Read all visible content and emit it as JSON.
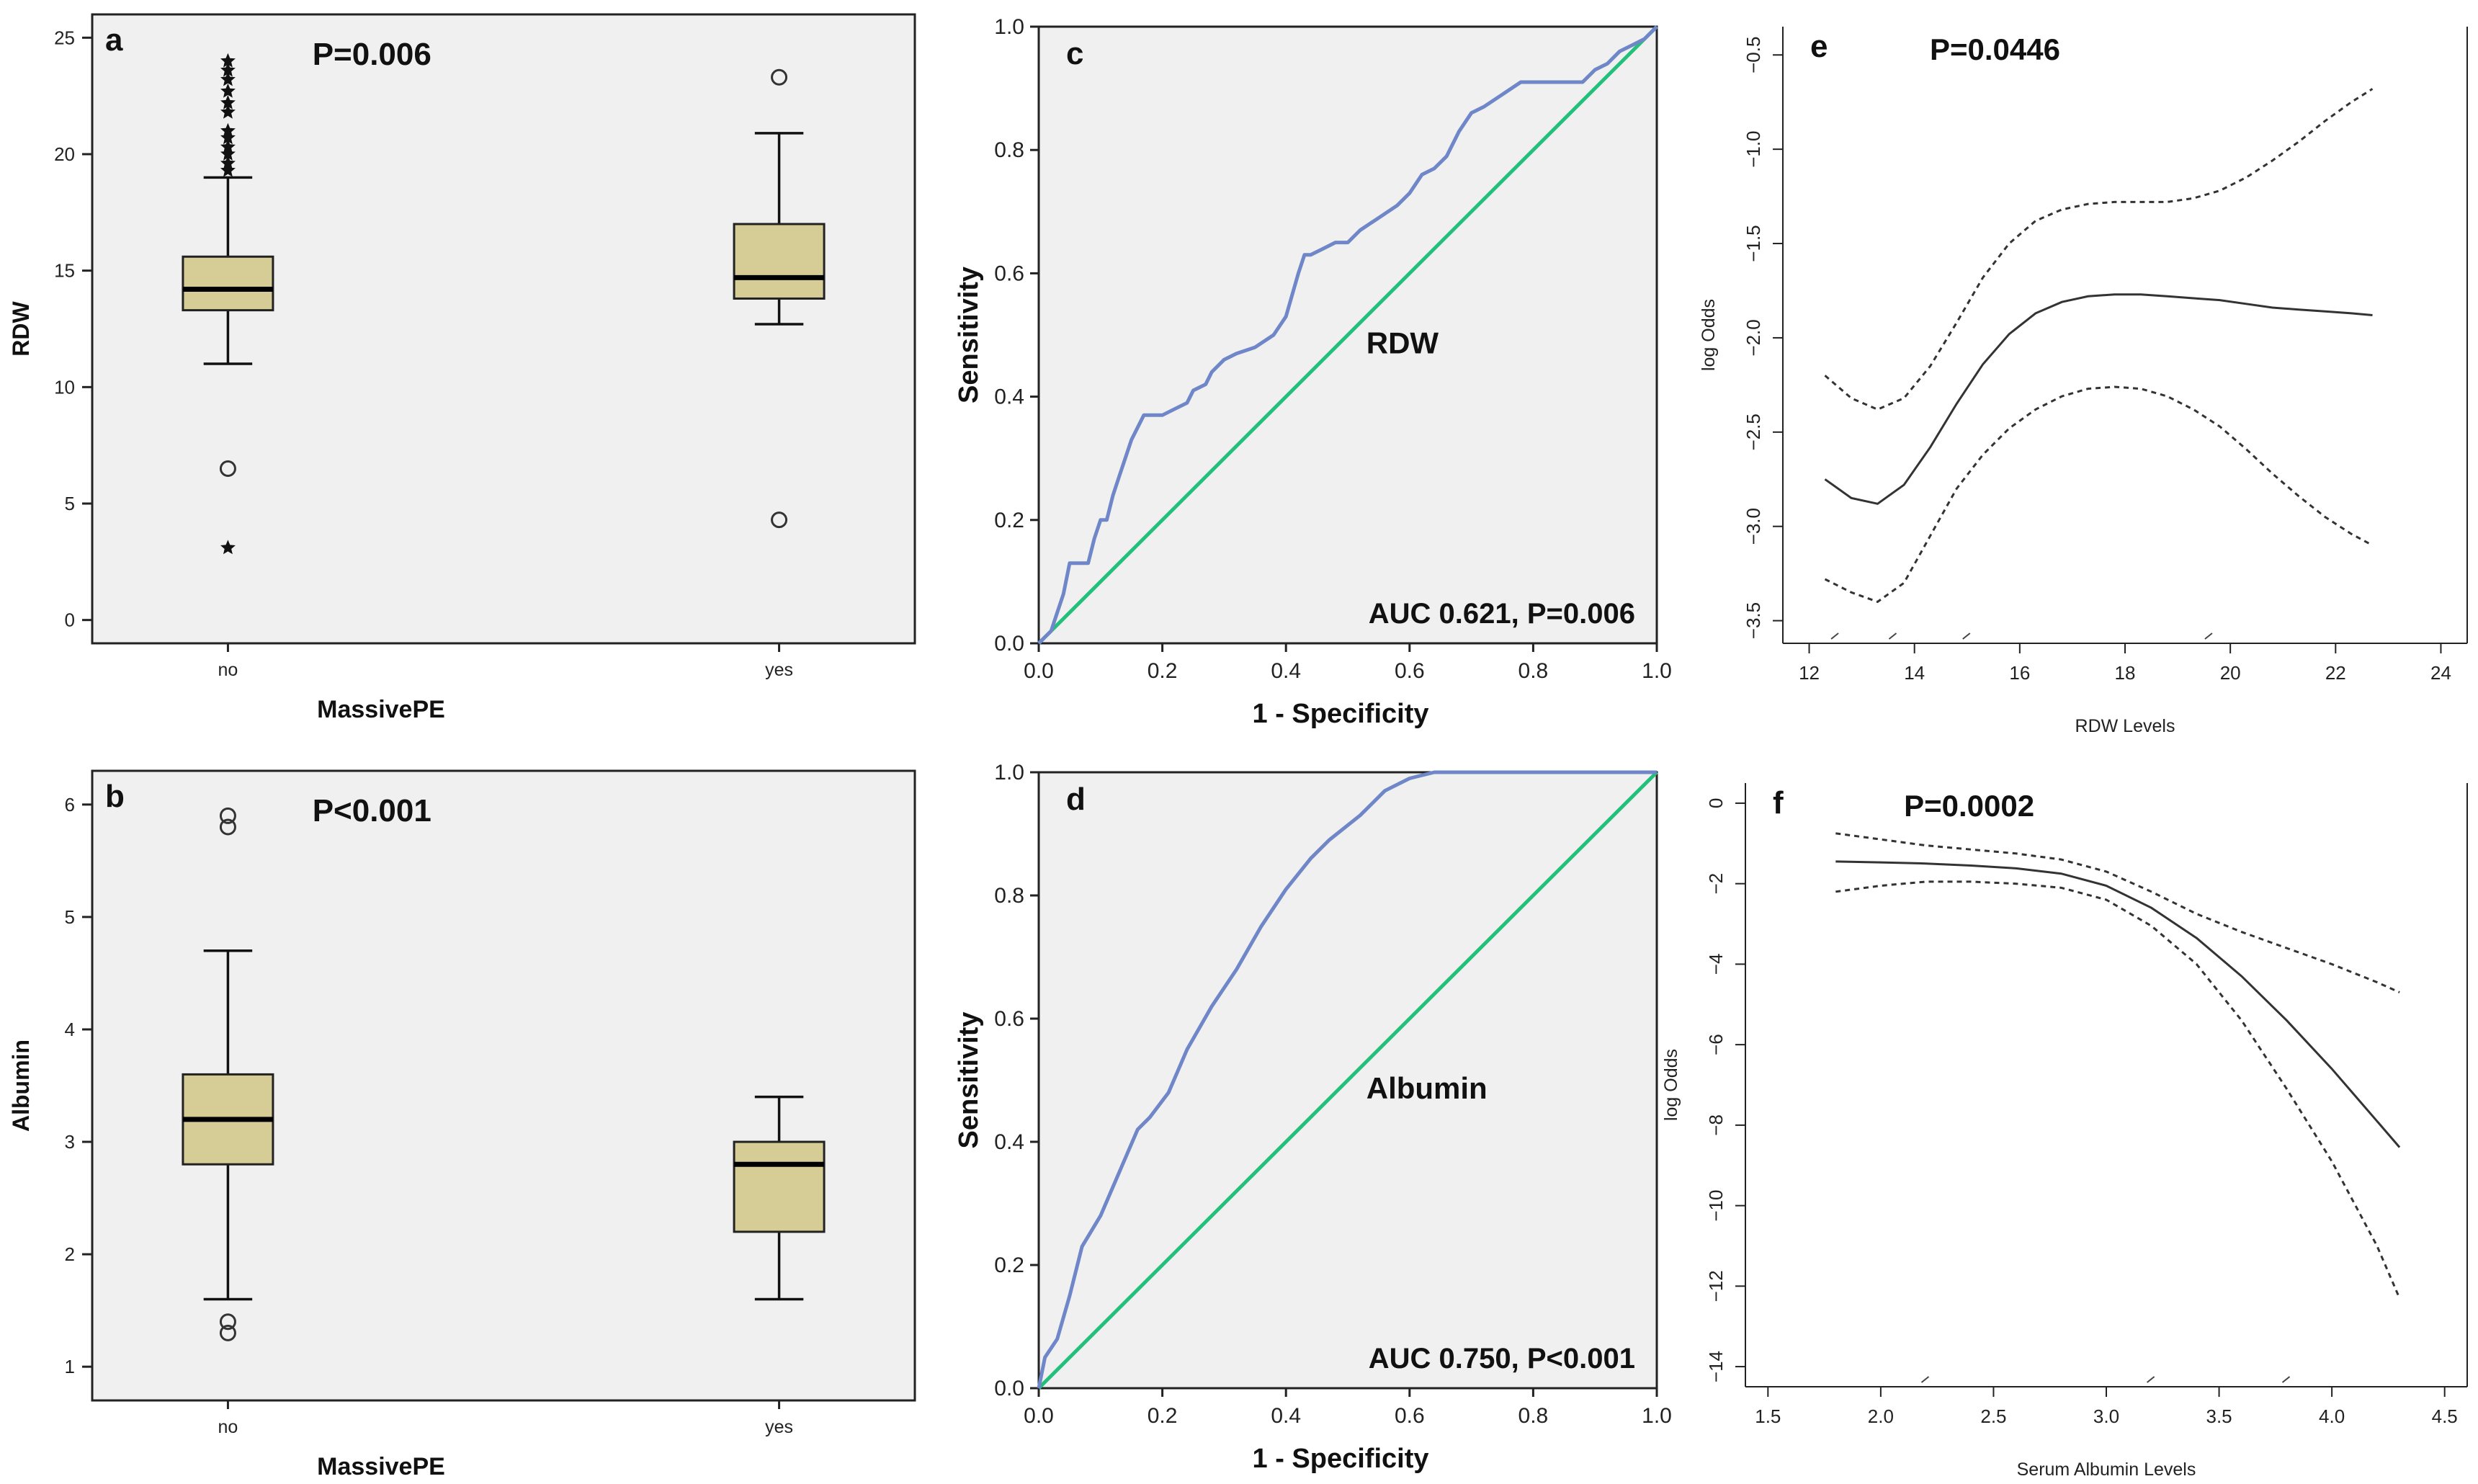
{
  "colors": {
    "panel_bg": "#f0f0f0",
    "box_fill": "#d6cd96",
    "roc_curve": "#6f86c8",
    "roc_diagonal": "#22c07a",
    "spline": "#333333"
  },
  "chart_data": [
    {
      "id": "a",
      "type": "box",
      "panel_letter": "a",
      "annotation": "P=0.006",
      "xlabel": "MassivePE",
      "ylabel": "RDW",
      "ylim": [
        -1,
        26
      ],
      "yticks": [
        0,
        5,
        10,
        15,
        20,
        25
      ],
      "categories": [
        "no",
        "yes"
      ],
      "boxes": [
        {
          "category": "no",
          "whisker_low": 11,
          "q1": 13.3,
          "median": 14.2,
          "q3": 15.6,
          "whisker_high": 19,
          "outliers_circle": [
            6.5
          ],
          "outliers_star": [
            3.1,
            19.3,
            19.6,
            20.0,
            20.3,
            20.7,
            21.0,
            21.8,
            22.2,
            22.7,
            23.2,
            23.6,
            24.0
          ]
        },
        {
          "category": "yes",
          "whisker_low": 12.7,
          "q1": 13.8,
          "median": 14.7,
          "q3": 17.0,
          "whisker_high": 20.9,
          "outliers_circle": [
            23.3,
            4.3
          ],
          "outliers_star": []
        }
      ]
    },
    {
      "id": "b",
      "type": "box",
      "panel_letter": "b",
      "annotation": "P<0.001",
      "xlabel": "MassivePE",
      "ylabel": "Albumin",
      "ylim": [
        0.7,
        6.3
      ],
      "yticks": [
        1,
        2,
        3,
        4,
        5,
        6
      ],
      "categories": [
        "no",
        "yes"
      ],
      "boxes": [
        {
          "category": "no",
          "whisker_low": 1.6,
          "q1": 2.8,
          "median": 3.2,
          "q3": 3.6,
          "whisker_high": 4.7,
          "outliers_circle": [
            5.9,
            5.8,
            1.4,
            1.3
          ],
          "outliers_star": []
        },
        {
          "category": "yes",
          "whisker_low": 1.6,
          "q1": 2.2,
          "median": 2.8,
          "q3": 3.0,
          "whisker_high": 3.4,
          "outliers_circle": [],
          "outliers_star": []
        }
      ]
    },
    {
      "id": "c",
      "type": "line",
      "panel_letter": "c",
      "curve_label": "RDW",
      "annotation": "AUC 0.621, P=0.006",
      "xlabel": "1 - Specificity",
      "ylabel": "Sensitivity",
      "xlim": [
        0,
        1
      ],
      "ylim": [
        0,
        1
      ],
      "xticks": [
        0.0,
        0.2,
        0.4,
        0.6,
        0.8,
        1.0
      ],
      "yticks": [
        0.0,
        0.2,
        0.4,
        0.6,
        0.8,
        1.0
      ],
      "series": [
        {
          "name": "ROC",
          "x": [
            0,
            0.01,
            0.02,
            0.03,
            0.04,
            0.05,
            0.06,
            0.08,
            0.09,
            0.1,
            0.11,
            0.12,
            0.13,
            0.14,
            0.15,
            0.16,
            0.17,
            0.18,
            0.2,
            0.22,
            0.24,
            0.25,
            0.27,
            0.28,
            0.3,
            0.32,
            0.35,
            0.38,
            0.4,
            0.42,
            0.43,
            0.44,
            0.46,
            0.48,
            0.5,
            0.52,
            0.55,
            0.58,
            0.6,
            0.62,
            0.64,
            0.66,
            0.68,
            0.7,
            0.72,
            0.75,
            0.78,
            0.8,
            0.82,
            0.85,
            0.88,
            0.9,
            0.92,
            0.94,
            0.96,
            0.98,
            1.0
          ],
          "y": [
            0,
            0.01,
            0.02,
            0.05,
            0.08,
            0.13,
            0.13,
            0.13,
            0.17,
            0.2,
            0.2,
            0.24,
            0.27,
            0.3,
            0.33,
            0.35,
            0.37,
            0.37,
            0.37,
            0.38,
            0.39,
            0.41,
            0.42,
            0.44,
            0.46,
            0.47,
            0.48,
            0.5,
            0.53,
            0.6,
            0.63,
            0.63,
            0.64,
            0.65,
            0.65,
            0.67,
            0.69,
            0.71,
            0.73,
            0.76,
            0.77,
            0.79,
            0.83,
            0.86,
            0.87,
            0.89,
            0.91,
            0.91,
            0.91,
            0.91,
            0.91,
            0.93,
            0.94,
            0.96,
            0.97,
            0.98,
            1.0
          ]
        },
        {
          "name": "reference",
          "x": [
            0,
            1
          ],
          "y": [
            0,
            1
          ]
        }
      ]
    },
    {
      "id": "d",
      "type": "line",
      "panel_letter": "d",
      "curve_label": "Albumin",
      "annotation": "AUC 0.750, P<0.001",
      "xlabel": "1 - Specificity",
      "ylabel": "Sensitivity",
      "xlim": [
        0,
        1
      ],
      "ylim": [
        0,
        1
      ],
      "xticks": [
        0.0,
        0.2,
        0.4,
        0.6,
        0.8,
        1.0
      ],
      "yticks": [
        0.0,
        0.2,
        0.4,
        0.6,
        0.8,
        1.0
      ],
      "series": [
        {
          "name": "ROC",
          "x": [
            0,
            0.01,
            0.03,
            0.05,
            0.07,
            0.1,
            0.13,
            0.16,
            0.18,
            0.21,
            0.24,
            0.28,
            0.32,
            0.36,
            0.4,
            0.44,
            0.47,
            0.52,
            0.56,
            0.6,
            0.64,
            0.67,
            0.7,
            0.75,
            0.8,
            0.85,
            0.9,
            0.95,
            1.0
          ],
          "y": [
            0,
            0.05,
            0.08,
            0.15,
            0.23,
            0.28,
            0.35,
            0.42,
            0.44,
            0.48,
            0.55,
            0.62,
            0.68,
            0.75,
            0.81,
            0.86,
            0.89,
            0.93,
            0.97,
            0.99,
            1.0,
            1.0,
            1.0,
            1.0,
            1.0,
            1.0,
            1.0,
            1.0,
            1.0
          ]
        },
        {
          "name": "reference",
          "x": [
            0,
            1
          ],
          "y": [
            0,
            1
          ]
        }
      ]
    },
    {
      "id": "e",
      "type": "line",
      "panel_letter": "e",
      "annotation": "P=0.0446",
      "xlabel": "RDW Levels",
      "ylabel": "log Odds",
      "xlim": [
        11.5,
        24.5
      ],
      "ylim": [
        -3.62,
        -0.35
      ],
      "xticks": [
        12,
        14,
        16,
        18,
        20,
        22,
        24
      ],
      "yticks": [
        -3.5,
        -3.0,
        -2.5,
        -2.0,
        -1.5,
        -1.0,
        -0.5
      ],
      "rug_x": [
        12.5,
        13.6,
        15.0,
        19.6
      ],
      "series": [
        {
          "name": "fit",
          "style": "solid",
          "x": [
            12.3,
            12.8,
            13.3,
            13.8,
            14.3,
            14.8,
            15.3,
            15.8,
            16.3,
            16.8,
            17.3,
            17.8,
            18.3,
            18.8,
            19.3,
            19.8,
            20.3,
            20.8,
            21.3,
            21.8,
            22.3,
            22.7
          ],
          "y": [
            -2.75,
            -2.85,
            -2.88,
            -2.78,
            -2.58,
            -2.35,
            -2.14,
            -1.98,
            -1.87,
            -1.81,
            -1.78,
            -1.77,
            -1.77,
            -1.78,
            -1.79,
            -1.8,
            -1.82,
            -1.84,
            -1.85,
            -1.86,
            -1.87,
            -1.88
          ]
        },
        {
          "name": "upper",
          "style": "dashed",
          "x": [
            12.3,
            12.8,
            13.3,
            13.8,
            14.3,
            14.8,
            15.3,
            15.8,
            16.3,
            16.8,
            17.3,
            17.8,
            18.3,
            18.8,
            19.3,
            19.8,
            20.3,
            20.8,
            21.3,
            21.8,
            22.3,
            22.7
          ],
          "y": [
            -2.2,
            -2.32,
            -2.38,
            -2.32,
            -2.15,
            -1.92,
            -1.68,
            -1.5,
            -1.38,
            -1.32,
            -1.29,
            -1.28,
            -1.28,
            -1.28,
            -1.26,
            -1.22,
            -1.15,
            -1.06,
            -0.96,
            -0.85,
            -0.75,
            -0.68
          ]
        },
        {
          "name": "lower",
          "style": "dashed",
          "x": [
            12.3,
            12.8,
            13.3,
            13.8,
            14.3,
            14.8,
            15.3,
            15.8,
            16.3,
            16.8,
            17.3,
            17.8,
            18.3,
            18.8,
            19.3,
            19.8,
            20.3,
            20.8,
            21.3,
            21.8,
            22.3,
            22.7
          ],
          "y": [
            -3.28,
            -3.35,
            -3.4,
            -3.3,
            -3.05,
            -2.8,
            -2.62,
            -2.48,
            -2.38,
            -2.31,
            -2.27,
            -2.26,
            -2.27,
            -2.31,
            -2.38,
            -2.47,
            -2.59,
            -2.72,
            -2.84,
            -2.95,
            -3.04,
            -3.1
          ]
        }
      ]
    },
    {
      "id": "f",
      "type": "line",
      "panel_letter": "f",
      "annotation": "P=0.0002",
      "xlabel": "Serum Albumin Levels",
      "ylabel": "log Odds",
      "xlim": [
        1.4,
        4.6
      ],
      "ylim": [
        -14.5,
        0.5
      ],
      "xticks": [
        1.5,
        2.0,
        2.5,
        3.0,
        3.5,
        4.0,
        4.5
      ],
      "yticks": [
        -14,
        -12,
        -10,
        -8,
        -6,
        -4,
        -2,
        0
      ],
      "rug_x": [
        2.2,
        3.2,
        3.8
      ],
      "series": [
        {
          "name": "fit",
          "style": "solid",
          "x": [
            1.8,
            2.0,
            2.2,
            2.4,
            2.6,
            2.8,
            3.0,
            3.2,
            3.4,
            3.6,
            3.8,
            4.0,
            4.2,
            4.3
          ],
          "y": [
            -1.45,
            -1.47,
            -1.5,
            -1.55,
            -1.62,
            -1.75,
            -2.05,
            -2.6,
            -3.35,
            -4.3,
            -5.4,
            -6.6,
            -7.9,
            -8.55
          ]
        },
        {
          "name": "upper",
          "style": "dashed",
          "x": [
            1.8,
            2.0,
            2.2,
            2.4,
            2.6,
            2.8,
            3.0,
            3.2,
            3.4,
            3.6,
            3.8,
            4.0,
            4.2,
            4.3
          ],
          "y": [
            -0.75,
            -0.9,
            -1.05,
            -1.15,
            -1.25,
            -1.4,
            -1.7,
            -2.2,
            -2.75,
            -3.2,
            -3.6,
            -4.0,
            -4.45,
            -4.7
          ]
        },
        {
          "name": "lower",
          "style": "dashed",
          "x": [
            1.8,
            2.0,
            2.2,
            2.4,
            2.6,
            2.8,
            3.0,
            3.2,
            3.4,
            3.6,
            3.8,
            4.0,
            4.2,
            4.3
          ],
          "y": [
            -2.2,
            -2.05,
            -1.95,
            -1.95,
            -2.0,
            -2.1,
            -2.4,
            -3.05,
            -4.0,
            -5.4,
            -7.1,
            -8.9,
            -11.0,
            -12.3
          ]
        }
      ]
    }
  ]
}
